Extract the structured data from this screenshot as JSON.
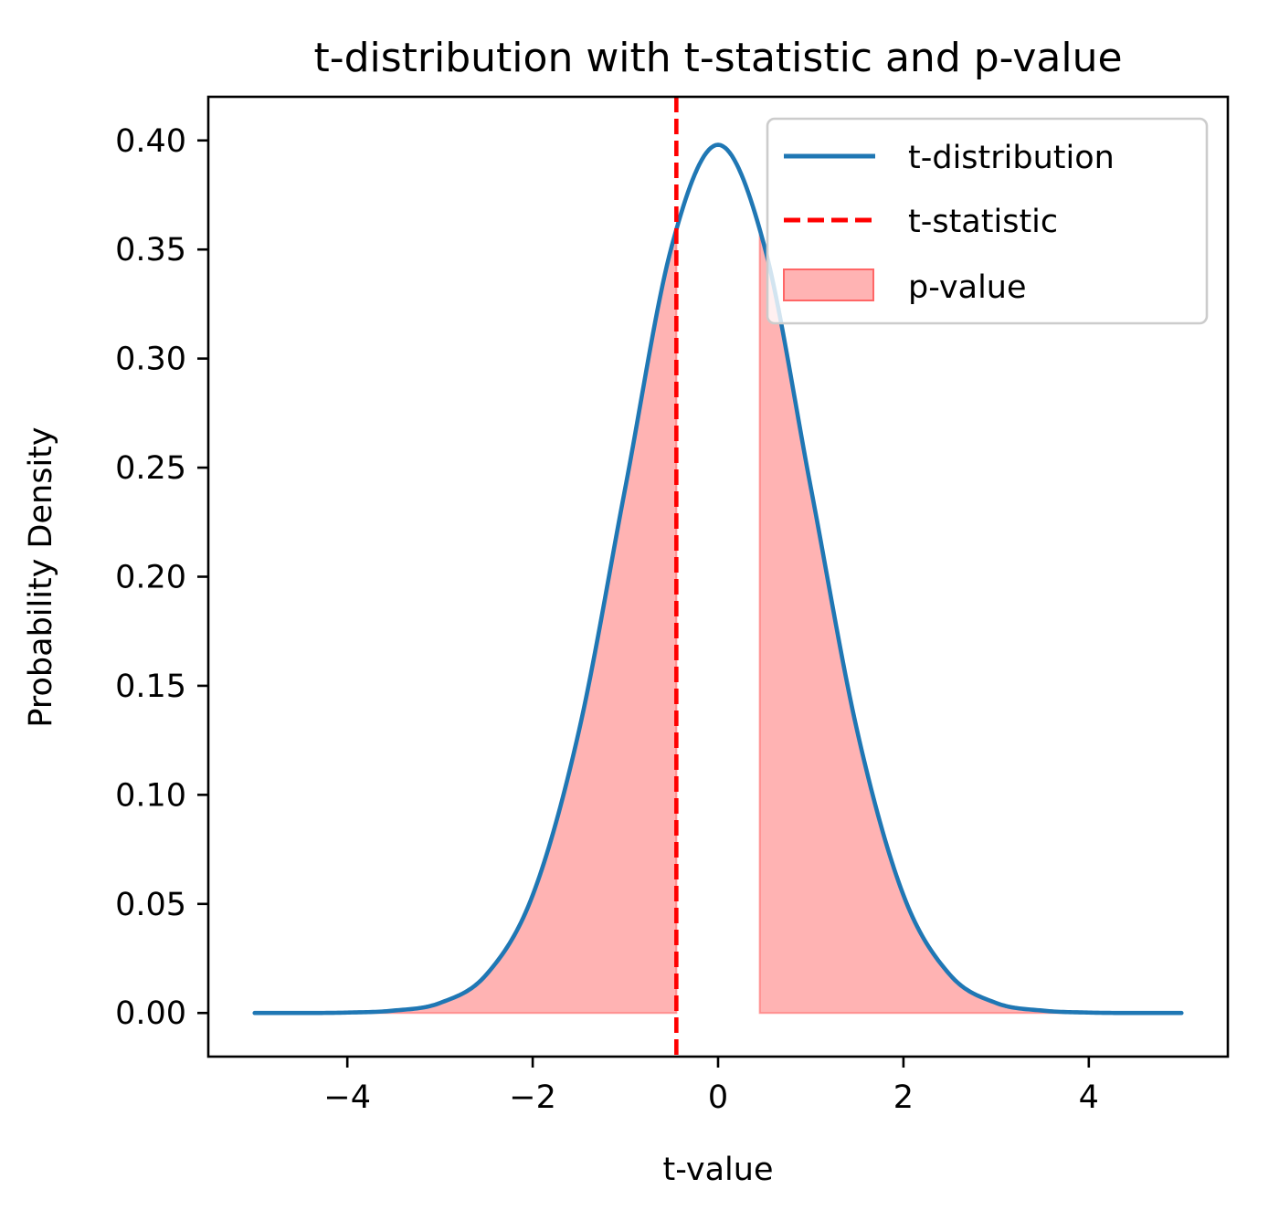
{
  "chart_data": {
    "type": "line",
    "title": "t-distribution with t-statistic and p-value",
    "xlabel": "t-value",
    "ylabel": "Probability Density",
    "xlim": [
      -5.5,
      5.5
    ],
    "ylim": [
      -0.02,
      0.42
    ],
    "xticks": [
      -4,
      -2,
      0,
      2,
      4
    ],
    "xtick_labels": [
      "−4",
      "−2",
      "0",
      "2",
      "4"
    ],
    "yticks": [
      0.0,
      0.05,
      0.1,
      0.15,
      0.2,
      0.25,
      0.3,
      0.35,
      0.4
    ],
    "ytick_labels": [
      "0.00",
      "0.05",
      "0.10",
      "0.15",
      "0.20",
      "0.25",
      "0.30",
      "0.35",
      "0.40"
    ],
    "grid": false,
    "legend_position": "top-right",
    "series": [
      {
        "name": "t-distribution",
        "kind": "line",
        "color": "#1f77b4",
        "x": [
          -5.0,
          -4.5,
          -4.0,
          -3.5,
          -3.0,
          -2.5,
          -2.0,
          -1.5,
          -1.0,
          -0.5,
          0.0,
          0.5,
          1.0,
          1.5,
          2.0,
          2.5,
          3.0,
          3.5,
          4.0,
          4.5,
          5.0
        ],
        "y": [
          0.0,
          0.0,
          0.0002,
          0.0011,
          0.0046,
          0.0176,
          0.054,
          0.1295,
          0.241,
          0.3515,
          0.398,
          0.3515,
          0.241,
          0.1295,
          0.054,
          0.0176,
          0.0046,
          0.0011,
          0.0002,
          0.0,
          0.0
        ]
      },
      {
        "name": "t-statistic",
        "kind": "vline",
        "color": "#ff0000",
        "x": -0.45
      },
      {
        "name": "p-value",
        "kind": "fill",
        "color": "#ff9999",
        "regions": [
          [
            -5.0,
            -0.45
          ],
          [
            0.45,
            5.0
          ]
        ]
      }
    ]
  }
}
